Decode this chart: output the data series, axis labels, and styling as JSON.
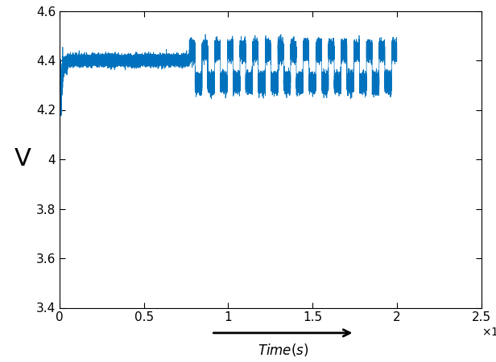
{
  "xlim": [
    0,
    250000
  ],
  "ylim": [
    3.4,
    4.6
  ],
  "xticks": [
    0,
    50000,
    100000,
    150000,
    200000,
    250000
  ],
  "xtick_labels": [
    "0",
    "0.5",
    "1",
    "1.5",
    "2",
    "2.5"
  ],
  "yticks": [
    3.4,
    3.6,
    3.8,
    4.0,
    4.2,
    4.4,
    4.6
  ],
  "ytick_labels": [
    "3.4",
    "3.6",
    "3.8",
    "4",
    "4.2",
    "4.4",
    "4.6"
  ],
  "ylabel": "V",
  "line_color": "#0072BD",
  "line_width": 0.5,
  "seed": 42,
  "total_points": 50000,
  "figsize": [
    6.16,
    4.5
  ],
  "dpi": 100
}
